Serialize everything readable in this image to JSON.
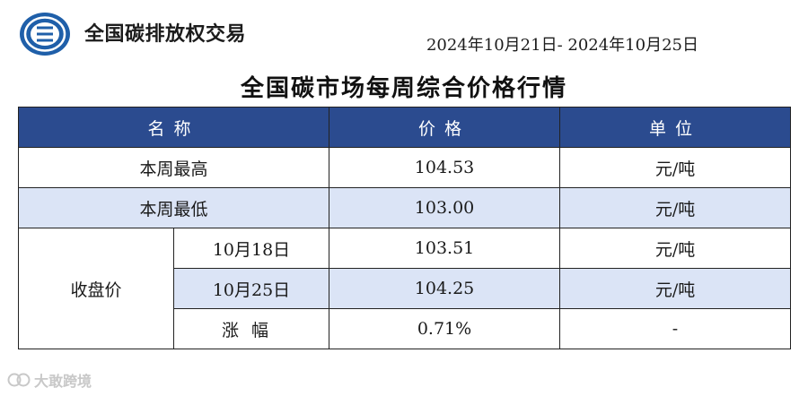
{
  "header": {
    "brand_name": "全国碳排放权交易",
    "logo_icon": "exchange-logo-icon",
    "date_range": "2024年10月21日- 2024年10月25日"
  },
  "title": "全国碳市场每周综合价格行情",
  "table": {
    "columns": [
      "名称",
      "价格",
      "单位"
    ],
    "rows": {
      "weekly_high": {
        "name": "本周最高",
        "price": "104.53",
        "unit": "元/吨"
      },
      "weekly_low": {
        "name": "本周最低",
        "price": "103.00",
        "unit": "元/吨"
      },
      "closing": {
        "group_label": "收盘价",
        "items": [
          {
            "label": "10月18日",
            "price": "103.51",
            "unit": "元/吨"
          },
          {
            "label": "10月25日",
            "price": "104.25",
            "unit": "元/吨"
          },
          {
            "label": "涨幅",
            "price": "0.71%",
            "unit": "-"
          }
        ]
      }
    }
  },
  "watermark": {
    "icon": "camera-lens-icon",
    "text": "大敢跨境"
  },
  "colors": {
    "header_bg": "#2b4b8f",
    "row_tint": "#dbe4f6",
    "logo_blue": "#1f5fa9"
  }
}
